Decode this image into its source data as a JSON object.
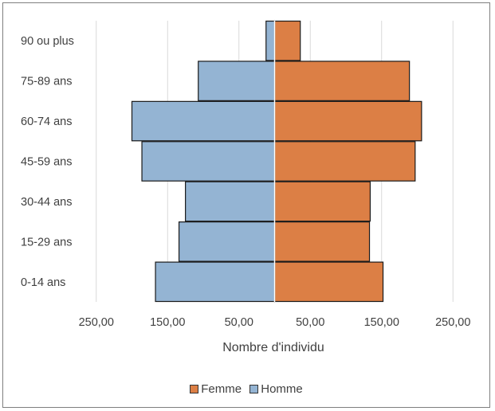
{
  "chart_data": {
    "type": "bar",
    "orientation": "horizontal",
    "layout": "population-pyramid",
    "categories": [
      "0-14 ans",
      "15-29 ans",
      "30-44 ans",
      "45-59 ans",
      "60-74 ans",
      "75-89 ans",
      "90 ou plus"
    ],
    "series": [
      {
        "name": "Femme",
        "color": "#dc7f45",
        "side": "right",
        "values": [
          152,
          133,
          134,
          197,
          206,
          189,
          36
        ]
      },
      {
        "name": "Homme",
        "color": "#94b4d3",
        "side": "left",
        "values": [
          167,
          134,
          125,
          186,
          200,
          107,
          12
        ]
      }
    ],
    "title": "",
    "xlabel": "Nombre d'individu",
    "ylabel": "",
    "xticks": [
      -250,
      -150,
      -50,
      50,
      150,
      250
    ],
    "xtick_labels": [
      "250,00",
      "150,00",
      "50,00",
      "50,00",
      "150,00",
      "250,00"
    ],
    "xlim": [
      -300,
      300
    ],
    "grid": "vertical",
    "legend": {
      "position": "bottom",
      "order": [
        "Femme",
        "Homme"
      ]
    }
  }
}
